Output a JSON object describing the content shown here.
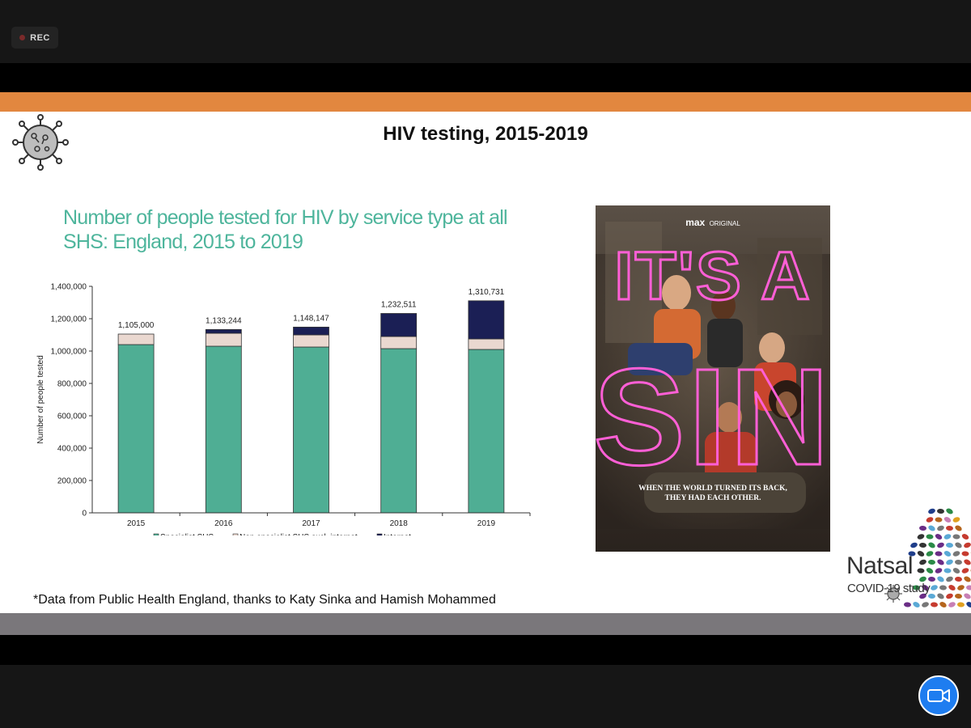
{
  "recording": {
    "label": "REC"
  },
  "slide": {
    "title": "HIV testing, 2015-2019",
    "chart_title": "Number of people tested for HIV by service type at all SHS: England, 2015 to 2019",
    "footnote": "*Data from Public Health England, thanks to Katy Sinka and Hamish Mohammed"
  },
  "poster": {
    "brand": "max",
    "brand_sub": "ORIGINAL",
    "title_line1": "IT'S A",
    "title_line2": "SIN",
    "tagline_line1": "WHEN THE WORLD TURNED ITS BACK,",
    "tagline_line2": "THEY HAD EACH OTHER."
  },
  "logo": {
    "word": "Natsal",
    "subtitle": "COVID-19 study"
  },
  "colors": {
    "accent_orange": "#e2873f",
    "chart_title": "#4eb59c",
    "specialist": "#4fae94",
    "nonspecialist": "#ead8d0",
    "internet": "#1b1f55",
    "zoom_blue": "#1e7df0"
  },
  "icons": {
    "recording": "record-dot-icon",
    "virus": "virus-icon",
    "video": "video-camera-icon"
  },
  "chart_data": {
    "type": "bar",
    "stacked": true,
    "categories": [
      "2015",
      "2016",
      "2017",
      "2018",
      "2019"
    ],
    "series": [
      {
        "name": "Specialist SHS",
        "values": [
          1040000,
          1030000,
          1025000,
          1015000,
          1010000
        ],
        "color": "#4fae94"
      },
      {
        "name": "Non-specialist SHS excl. internet",
        "values": [
          65000,
          80000,
          75000,
          75000,
          65000
        ],
        "color": "#ead8d0"
      },
      {
        "name": "Internet",
        "values": [
          0,
          23244,
          48147,
          142511,
          235731
        ],
        "color": "#1b1f55"
      }
    ],
    "totals": [
      "1,105,000",
      "1,133,244",
      "1,148,147",
      "1,232,511",
      "1,310,731"
    ],
    "ylabel": "Number of people tested",
    "xlabel": "",
    "ylim": [
      0,
      1400000
    ],
    "yticks": [
      "0",
      "200,000",
      "400,000",
      "600,000",
      "800,000",
      "1,000,000",
      "1,200,000",
      "1,400,000"
    ],
    "legend_position": "bottom"
  }
}
